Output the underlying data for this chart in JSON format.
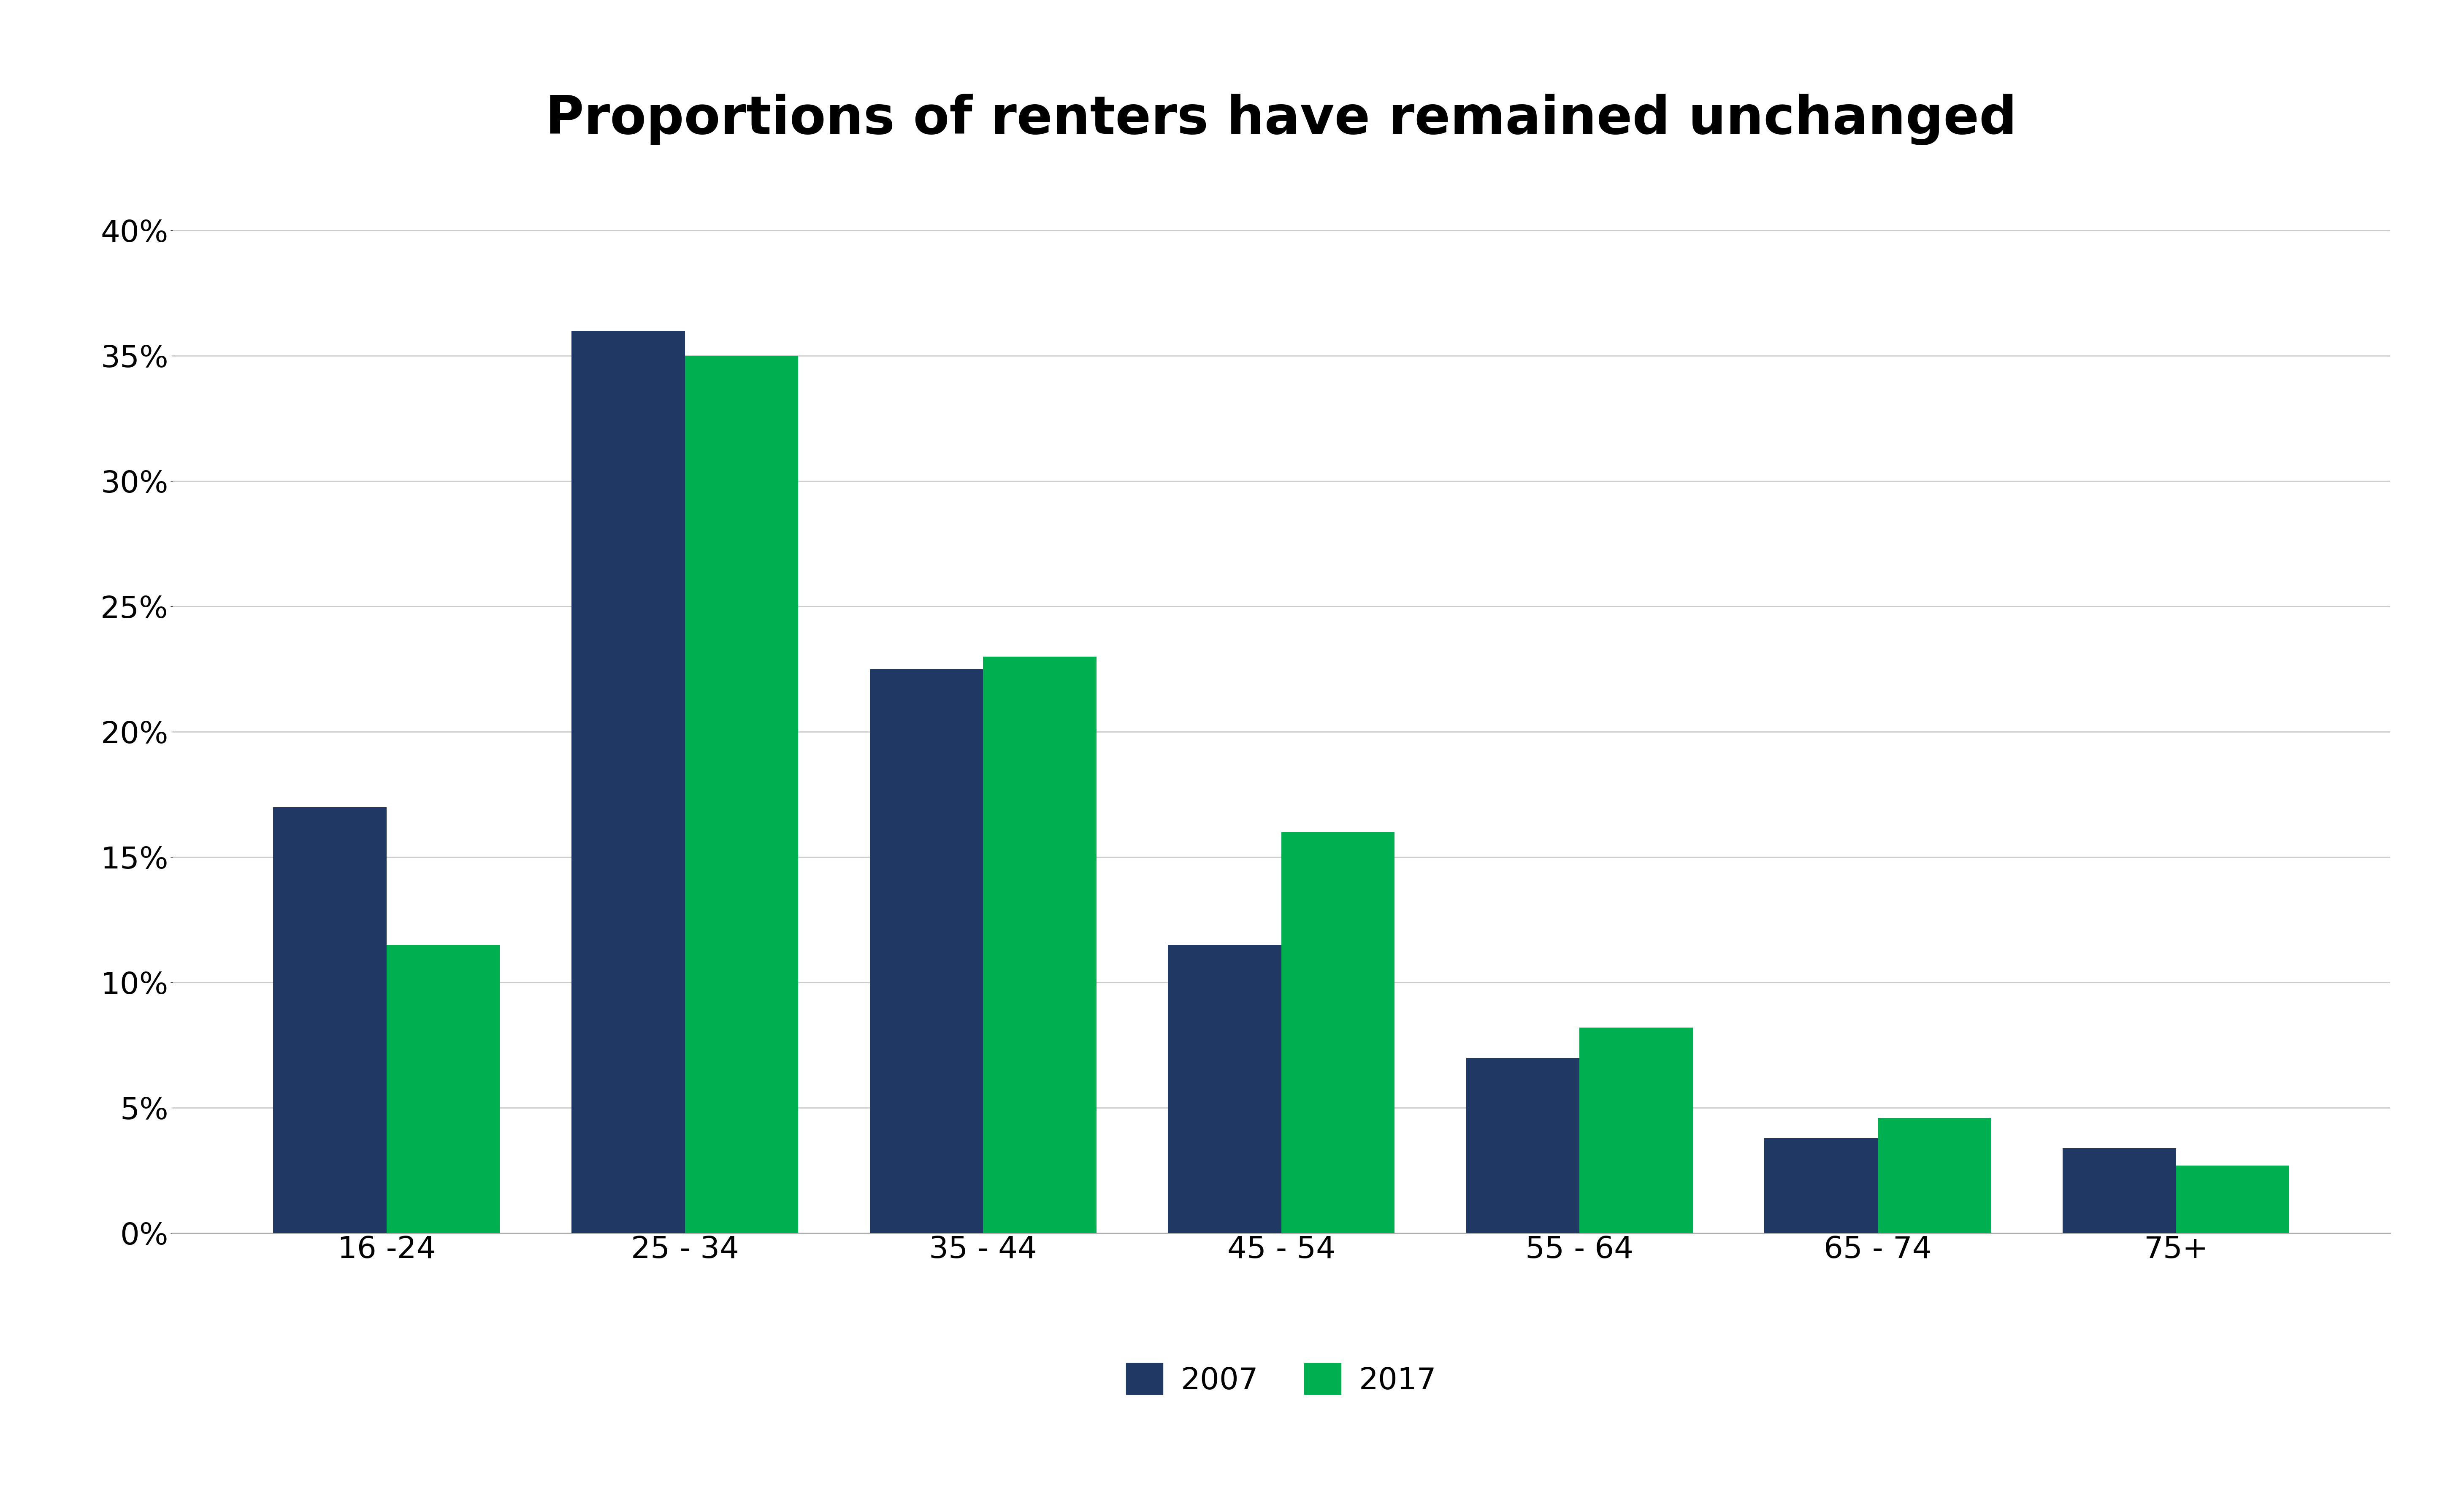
{
  "title": "Proportions of renters have remained unchanged",
  "categories": [
    "16 -24",
    "25 - 34",
    "35 - 44",
    "45 - 54",
    "55 - 64",
    "65 - 74",
    "75+"
  ],
  "values_2007": [
    0.17,
    0.36,
    0.225,
    0.115,
    0.07,
    0.038,
    0.034
  ],
  "values_2017": [
    0.115,
    0.35,
    0.23,
    0.16,
    0.082,
    0.046,
    0.027
  ],
  "color_2007": "#1F3864",
  "color_2017": "#00B050",
  "legend_labels": [
    "2007",
    "2017"
  ],
  "ylim": [
    0,
    0.42
  ],
  "yticks": [
    0.0,
    0.05,
    0.1,
    0.15,
    0.2,
    0.25,
    0.3,
    0.35,
    0.4
  ],
  "ytick_labels": [
    "0%",
    "5%",
    "10%",
    "15%",
    "20%",
    "25%",
    "30%",
    "35%",
    "40%"
  ],
  "background_color": "#ffffff",
  "title_fontsize": 90,
  "tick_fontsize": 52,
  "legend_fontsize": 52,
  "bar_width": 0.38,
  "figure_width": 58.38,
  "figure_height": 35.64
}
